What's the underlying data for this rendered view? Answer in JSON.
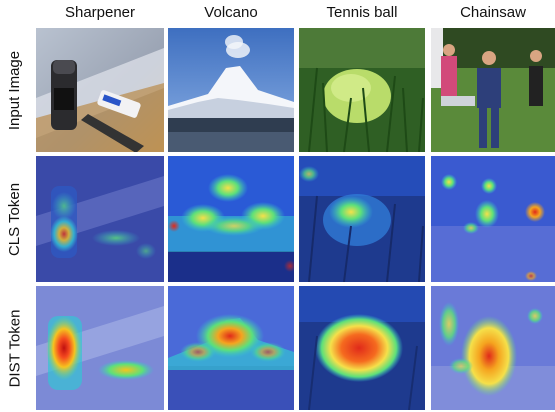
{
  "figure": {
    "columns": [
      {
        "label": "Sharpener"
      },
      {
        "label": "Volcano"
      },
      {
        "label": "Tennis ball"
      },
      {
        "label": "Chainsaw"
      }
    ],
    "rows": [
      {
        "label": "Input Image"
      },
      {
        "label": "CLS Token"
      },
      {
        "label": "DIST Token"
      }
    ]
  },
  "colors": {
    "heatmap_low": "#1f3ea8",
    "heatmap_mid": "#34c3d4",
    "heatmap_high": "#e02a1a",
    "sky": "#4a78c2",
    "grass": "#3d7a2a"
  }
}
